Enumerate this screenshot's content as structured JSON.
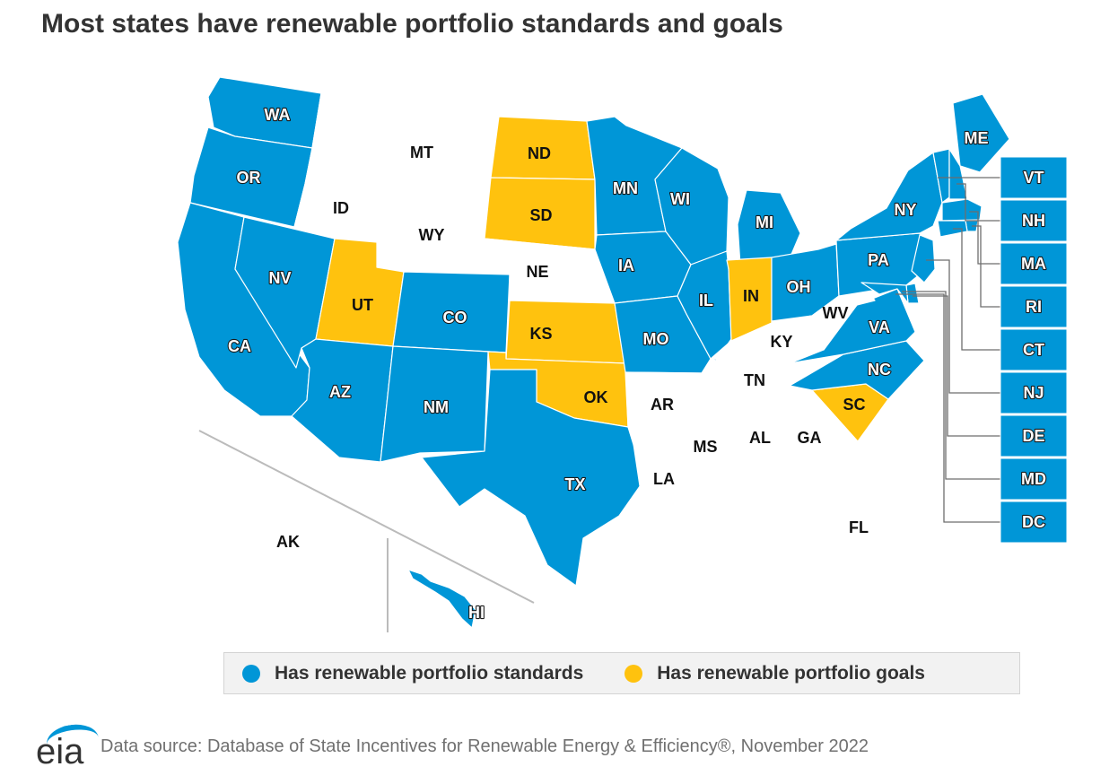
{
  "title": "Most states have renewable portfolio standards and goals",
  "colors": {
    "standards": "#0096d7",
    "goals": "#ffc20e",
    "none": "#ffffff",
    "outline": "#c8c8c8"
  },
  "legend": [
    {
      "key": "standards",
      "label": "Has renewable portfolio standards",
      "color": "#0096d7"
    },
    {
      "key": "goals",
      "label": "Has renewable portfolio goals",
      "color": "#ffc20e"
    }
  ],
  "states": {
    "standards": [
      "WA",
      "OR",
      "CA",
      "NV",
      "AZ",
      "CO",
      "NM",
      "TX",
      "MN",
      "IA",
      "MO",
      "WI",
      "IL",
      "MI",
      "OH",
      "PA",
      "NY",
      "VA",
      "NC",
      "ME",
      "VT",
      "NH",
      "MA",
      "RI",
      "CT",
      "NJ",
      "DE",
      "MD",
      "DC",
      "HI"
    ],
    "goals": [
      "ND",
      "SD",
      "UT",
      "KS",
      "OK",
      "IN",
      "SC"
    ],
    "none": [
      "MT",
      "ID",
      "WY",
      "NE",
      "AR",
      "LA",
      "MS",
      "AL",
      "GA",
      "FL",
      "TN",
      "KY",
      "WV",
      "AK"
    ]
  },
  "labels": {
    "WA": "WA",
    "OR": "OR",
    "CA": "CA",
    "NV": "NV",
    "ID": "ID",
    "MT": "MT",
    "WY": "WY",
    "UT": "UT",
    "AZ": "AZ",
    "CO": "CO",
    "NM": "NM",
    "ND": "ND",
    "SD": "SD",
    "NE": "NE",
    "KS": "KS",
    "OK": "OK",
    "TX": "TX",
    "MN": "MN",
    "IA": "IA",
    "MO": "MO",
    "AR": "AR",
    "LA": "LA",
    "WI": "WI",
    "IL": "IL",
    "MI": "MI",
    "IN": "IN",
    "OH": "OH",
    "KY": "KY",
    "TN": "TN",
    "MS": "MS",
    "AL": "AL",
    "GA": "GA",
    "FL": "FL",
    "SC": "SC",
    "NC": "NC",
    "VA": "VA",
    "WV": "WV",
    "PA": "PA",
    "NY": "NY",
    "ME": "ME",
    "AK": "AK",
    "HI": "HI",
    "VT": "VT",
    "NH": "NH",
    "MA": "MA",
    "RI": "RI",
    "CT": "CT",
    "NJ": "NJ",
    "DE": "DE",
    "MD": "MD",
    "DC": "DC"
  },
  "callouts": [
    "VT",
    "NH",
    "MA",
    "RI",
    "CT",
    "NJ",
    "DE",
    "MD",
    "DC"
  ],
  "footer": {
    "logo_text": "eia",
    "source": "Data source: Database of State Incentives for Renewable Energy & Efficiency®, November 2022"
  }
}
